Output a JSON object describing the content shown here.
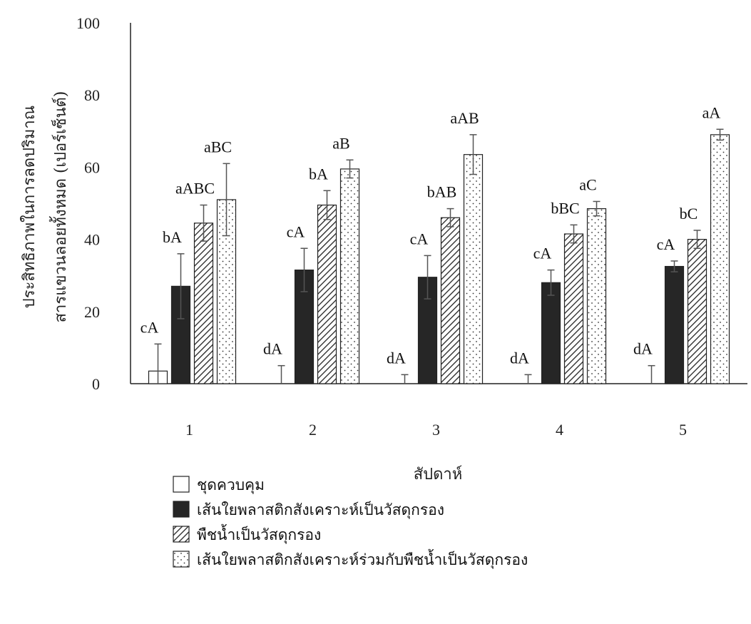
{
  "chart_data": {
    "type": "bar",
    "title": "",
    "xlabel": "สัปดาห์",
    "ylabel": [
      "ประสิทธิภาพในการลดปริมาณ",
      "สารแขวนลอยทั้งหมด (เปอร์เซ็นต์)"
    ],
    "categories": [
      "1",
      "2",
      "3",
      "4",
      "5"
    ],
    "ylim": [
      0,
      100
    ],
    "yticks": [
      0,
      20,
      40,
      60,
      80,
      100
    ],
    "grid": false,
    "legend_position": "bottom",
    "series": [
      {
        "name": "ชุดควบคุม",
        "pattern": "empty",
        "values": [
          3.5,
          0,
          0,
          0,
          0
        ],
        "errors": [
          7.5,
          5,
          2.5,
          2.5,
          5
        ],
        "labels": [
          "cA",
          "dA",
          "dA",
          "dA",
          "dA"
        ]
      },
      {
        "name": "เส้นใยพลาสติกสังเคราะห์เป็นวัสดุกรอง",
        "pattern": "solid",
        "values": [
          27,
          31.5,
          29.5,
          28,
          32.5
        ],
        "errors": [
          9,
          6,
          6,
          3.5,
          1.5
        ],
        "labels": [
          "bA",
          "cA",
          "cA",
          "cA",
          "cA"
        ]
      },
      {
        "name": "พืชน้ำเป็นวัสดุกรอง",
        "pattern": "diagonal",
        "values": [
          44.5,
          49.5,
          46,
          41.5,
          40
        ],
        "errors": [
          5,
          4,
          2.5,
          2.5,
          2.5
        ],
        "labels": [
          "aABC",
          "bA",
          "bAB",
          "bBC",
          "bC"
        ]
      },
      {
        "name": "เส้นใยพลาสติกสังเคราะห์ร่วมกับพืชน้ำเป็นวัสดุกรอง",
        "pattern": "dots",
        "values": [
          51,
          59.5,
          63.5,
          48.5,
          69
        ],
        "errors": [
          10,
          2.5,
          5.5,
          2,
          1.5
        ],
        "labels": [
          "aBC",
          "aB",
          "aAB",
          "aC",
          "aA"
        ]
      }
    ]
  },
  "colors": {
    "solid": "#262626",
    "outline": "#222222",
    "error_bar": "#555555",
    "axis": "#222222"
  }
}
